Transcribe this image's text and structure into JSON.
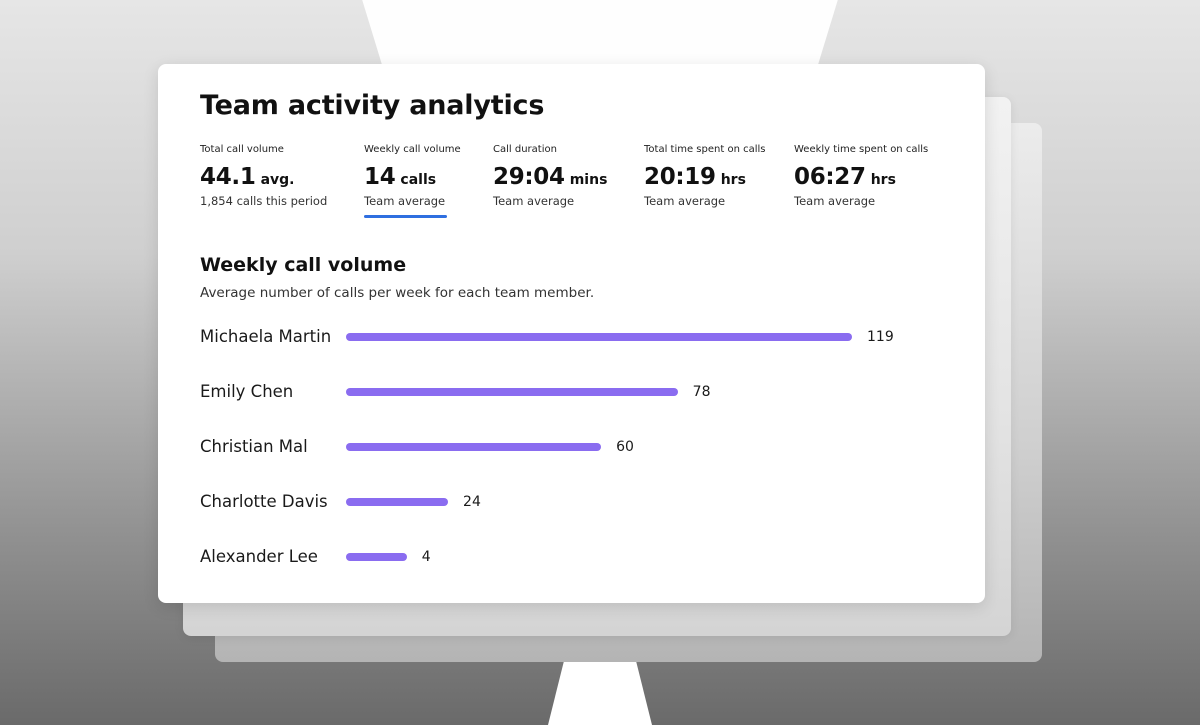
{
  "title": "Team activity analytics",
  "stats": [
    {
      "label": "Total call volume",
      "value": "44.1",
      "unit": "avg.",
      "sub": "1,854 calls this period"
    },
    {
      "label": "Weekly call volume",
      "value": "14",
      "unit": "calls",
      "sub": "Team average",
      "selected": true
    },
    {
      "label": "Call duration",
      "value": "29:04",
      "unit": "mins",
      "sub": "Team average"
    },
    {
      "label": "Total time spent on calls",
      "value": "20:19",
      "unit": "hrs",
      "sub": "Team average"
    },
    {
      "label": "Weekly time spent on calls",
      "value": "06:27",
      "unit": "hrs",
      "sub": "Team average"
    }
  ],
  "colors": {
    "bar": "#8a6cf0",
    "tab_underline": "#2f6fe0"
  },
  "chart_data": {
    "type": "bar",
    "orientation": "horizontal",
    "title": "Weekly call volume",
    "subtitle": "Average number of calls per week for each team member.",
    "categories": [
      "Michaela Martin",
      "Emily Chen",
      "Christian  Mal",
      "Charlotte Davis",
      "Alexander Lee"
    ],
    "values": [
      119,
      78,
      60,
      24,
      4
    ],
    "data_labels": [
      "119",
      "78",
      "60",
      "24",
      "4"
    ],
    "xlim": [
      0,
      119
    ],
    "grid": false
  }
}
